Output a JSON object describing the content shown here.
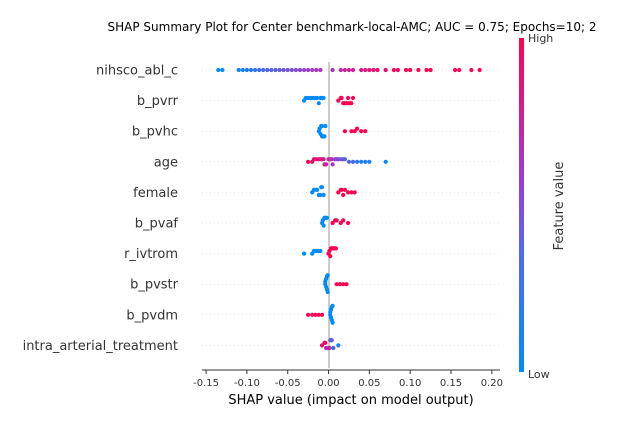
{
  "chart_data": {
    "type": "scatter",
    "title": "SHAP Summary Plot for Center benchmark-local-AMC; AUC = 0.75; Epochs=10; 2",
    "xlabel": "SHAP value (impact on model output)",
    "xlim": [
      -0.155,
      0.21
    ],
    "xticks": [
      "-0.15",
      "-0.10",
      "-0.05",
      "0.00",
      "0.05",
      "0.10",
      "0.15",
      "0.20"
    ],
    "xtick_values": [
      -0.15,
      -0.1,
      -0.05,
      0.0,
      0.05,
      0.1,
      0.15,
      0.2
    ],
    "colorbar": {
      "label": "Feature value",
      "high": "High",
      "low": "Low",
      "low_color": "#008bfb",
      "high_color": "#ff0052"
    },
    "features": [
      {
        "name": "nihsco_abl_c",
        "points": [
          {
            "x": -0.135,
            "v": 0.0
          },
          {
            "x": -0.13,
            "v": 0.0
          },
          {
            "x": -0.11,
            "v": 0.05
          },
          {
            "x": -0.105,
            "v": 0.05
          },
          {
            "x": -0.1,
            "v": 0.1
          },
          {
            "x": -0.095,
            "v": 0.1
          },
          {
            "x": -0.09,
            "v": 0.15
          },
          {
            "x": -0.085,
            "v": 0.2
          },
          {
            "x": -0.08,
            "v": 0.2
          },
          {
            "x": -0.075,
            "v": 0.25
          },
          {
            "x": -0.07,
            "v": 0.25
          },
          {
            "x": -0.065,
            "v": 0.3
          },
          {
            "x": -0.06,
            "v": 0.3
          },
          {
            "x": -0.055,
            "v": 0.35
          },
          {
            "x": -0.05,
            "v": 0.35
          },
          {
            "x": -0.045,
            "v": 0.4
          },
          {
            "x": -0.04,
            "v": 0.4
          },
          {
            "x": -0.035,
            "v": 0.45
          },
          {
            "x": -0.03,
            "v": 0.45
          },
          {
            "x": -0.025,
            "v": 0.5
          },
          {
            "x": -0.02,
            "v": 0.5
          },
          {
            "x": -0.015,
            "v": 0.55
          },
          {
            "x": -0.01,
            "v": 0.55
          },
          {
            "x": 0.005,
            "v": 0.6
          },
          {
            "x": 0.015,
            "v": 0.65
          },
          {
            "x": 0.02,
            "v": 0.7
          },
          {
            "x": 0.025,
            "v": 0.7
          },
          {
            "x": 0.03,
            "v": 0.75
          },
          {
            "x": 0.04,
            "v": 0.8
          },
          {
            "x": 0.045,
            "v": 0.8
          },
          {
            "x": 0.05,
            "v": 0.85
          },
          {
            "x": 0.055,
            "v": 0.85
          },
          {
            "x": 0.06,
            "v": 0.9
          },
          {
            "x": 0.07,
            "v": 0.9
          },
          {
            "x": 0.08,
            "v": 0.95
          },
          {
            "x": 0.085,
            "v": 0.95
          },
          {
            "x": 0.095,
            "v": 1.0
          },
          {
            "x": 0.1,
            "v": 1.0
          },
          {
            "x": 0.11,
            "v": 1.0
          },
          {
            "x": 0.12,
            "v": 1.0
          },
          {
            "x": 0.125,
            "v": 1.0
          },
          {
            "x": 0.155,
            "v": 1.0
          },
          {
            "x": 0.16,
            "v": 1.0
          },
          {
            "x": 0.175,
            "v": 1.0
          },
          {
            "x": 0.185,
            "v": 1.0
          }
        ]
      },
      {
        "name": "b_pvrr",
        "points": [
          {
            "x": -0.03,
            "v": 0.0
          },
          {
            "x": -0.025,
            "v": 0.0
          },
          {
            "x": -0.02,
            "v": 0.0
          },
          {
            "x": -0.018,
            "v": 0.0
          },
          {
            "x": -0.015,
            "v": 0.0
          },
          {
            "x": -0.012,
            "v": 0.0
          },
          {
            "x": -0.01,
            "v": 0.0
          },
          {
            "x": -0.008,
            "v": 0.0
          },
          {
            "x": -0.022,
            "v": 0.0
          },
          {
            "x": -0.014,
            "v": 0.0
          },
          {
            "x": -0.006,
            "v": 0.0
          },
          {
            "x": -0.028,
            "v": 0.0
          },
          {
            "x": 0.012,
            "v": 1.0
          },
          {
            "x": 0.015,
            "v": 1.0
          },
          {
            "x": 0.018,
            "v": 1.0
          },
          {
            "x": 0.02,
            "v": 1.0
          },
          {
            "x": 0.022,
            "v": 1.0
          },
          {
            "x": 0.025,
            "v": 1.0
          },
          {
            "x": 0.028,
            "v": 1.0
          },
          {
            "x": 0.03,
            "v": 1.0
          },
          {
            "x": 0.016,
            "v": 1.0
          },
          {
            "x": 0.024,
            "v": 1.0
          },
          {
            "x": 0.019,
            "v": 1.0
          },
          {
            "x": 0.026,
            "v": 1.0
          }
        ]
      },
      {
        "name": "b_pvhc",
        "points": [
          {
            "x": -0.012,
            "v": 0.0
          },
          {
            "x": -0.01,
            "v": 0.0
          },
          {
            "x": -0.008,
            "v": 0.0
          },
          {
            "x": -0.006,
            "v": 0.0
          },
          {
            "x": -0.005,
            "v": 0.0
          },
          {
            "x": -0.009,
            "v": 0.0
          },
          {
            "x": -0.007,
            "v": 0.0
          },
          {
            "x": -0.011,
            "v": 0.0
          },
          {
            "x": -0.004,
            "v": 0.0
          },
          {
            "x": -0.008,
            "v": 0.0
          },
          {
            "x": 0.02,
            "v": 1.0
          },
          {
            "x": 0.028,
            "v": 1.0
          },
          {
            "x": 0.032,
            "v": 1.0
          },
          {
            "x": 0.035,
            "v": 1.0
          },
          {
            "x": 0.04,
            "v": 1.0
          },
          {
            "x": 0.045,
            "v": 1.0
          }
        ]
      },
      {
        "name": "age",
        "points": [
          {
            "x": -0.025,
            "v": 1.0
          },
          {
            "x": -0.02,
            "v": 0.95
          },
          {
            "x": -0.015,
            "v": 0.9
          },
          {
            "x": -0.012,
            "v": 0.85
          },
          {
            "x": -0.01,
            "v": 0.8
          },
          {
            "x": -0.008,
            "v": 0.75
          },
          {
            "x": -0.005,
            "v": 0.7
          },
          {
            "x": -0.003,
            "v": 0.7
          },
          {
            "x": 0.0,
            "v": 0.65
          },
          {
            "x": 0.002,
            "v": 0.6
          },
          {
            "x": 0.005,
            "v": 0.55
          },
          {
            "x": 0.008,
            "v": 0.5
          },
          {
            "x": 0.01,
            "v": 0.45
          },
          {
            "x": 0.012,
            "v": 0.4
          },
          {
            "x": 0.015,
            "v": 0.35
          },
          {
            "x": 0.018,
            "v": 0.3
          },
          {
            "x": 0.02,
            "v": 0.3
          },
          {
            "x": 0.025,
            "v": 0.25
          },
          {
            "x": 0.03,
            "v": 0.2
          },
          {
            "x": 0.035,
            "v": 0.15
          },
          {
            "x": 0.04,
            "v": 0.1
          },
          {
            "x": 0.045,
            "v": 0.1
          },
          {
            "x": 0.05,
            "v": 0.05
          },
          {
            "x": 0.07,
            "v": 0.0
          },
          {
            "x": -0.018,
            "v": 0.9
          },
          {
            "x": -0.006,
            "v": 0.8
          },
          {
            "x": 0.004,
            "v": 0.6
          }
        ]
      },
      {
        "name": "female",
        "points": [
          {
            "x": -0.02,
            "v": 0.0
          },
          {
            "x": -0.018,
            "v": 0.0
          },
          {
            "x": -0.015,
            "v": 0.0
          },
          {
            "x": -0.012,
            "v": 0.0
          },
          {
            "x": -0.01,
            "v": 0.0
          },
          {
            "x": -0.008,
            "v": 0.0
          },
          {
            "x": -0.006,
            "v": 0.0
          },
          {
            "x": -0.014,
            "v": 0.0
          },
          {
            "x": -0.011,
            "v": 0.0
          },
          {
            "x": -0.009,
            "v": 0.0
          },
          {
            "x": 0.012,
            "v": 1.0
          },
          {
            "x": 0.015,
            "v": 1.0
          },
          {
            "x": 0.018,
            "v": 1.0
          },
          {
            "x": 0.02,
            "v": 1.0
          },
          {
            "x": 0.024,
            "v": 1.0
          },
          {
            "x": 0.028,
            "v": 1.0
          },
          {
            "x": 0.032,
            "v": 1.0
          },
          {
            "x": 0.016,
            "v": 1.0
          }
        ]
      },
      {
        "name": "b_pvaf",
        "points": [
          {
            "x": -0.008,
            "v": 0.0
          },
          {
            "x": -0.006,
            "v": 0.0
          },
          {
            "x": -0.004,
            "v": 0.0
          },
          {
            "x": -0.003,
            "v": 0.0
          },
          {
            "x": -0.005,
            "v": 0.0
          },
          {
            "x": -0.002,
            "v": 0.0
          },
          {
            "x": -0.007,
            "v": 0.0
          },
          {
            "x": 0.005,
            "v": 1.0
          },
          {
            "x": 0.008,
            "v": 1.0
          },
          {
            "x": 0.01,
            "v": 1.0
          },
          {
            "x": 0.015,
            "v": 1.0
          },
          {
            "x": 0.018,
            "v": 1.0
          },
          {
            "x": 0.024,
            "v": 1.0
          }
        ]
      },
      {
        "name": "r_ivtrom",
        "points": [
          {
            "x": -0.03,
            "v": 0.0
          },
          {
            "x": -0.02,
            "v": 0.0
          },
          {
            "x": -0.018,
            "v": 0.0
          },
          {
            "x": -0.015,
            "v": 0.0
          },
          {
            "x": -0.012,
            "v": 0.0
          },
          {
            "x": -0.01,
            "v": 0.0
          },
          {
            "x": 0.0,
            "v": 1.0
          },
          {
            "x": 0.002,
            "v": 1.0
          },
          {
            "x": 0.004,
            "v": 1.0
          },
          {
            "x": 0.006,
            "v": 1.0
          },
          {
            "x": 0.008,
            "v": 1.0
          },
          {
            "x": 0.003,
            "v": 1.0
          },
          {
            "x": 0.005,
            "v": 1.0
          },
          {
            "x": 0.007,
            "v": 1.0
          },
          {
            "x": 0.001,
            "v": 1.0
          },
          {
            "x": 0.009,
            "v": 1.0
          }
        ]
      },
      {
        "name": "b_pvstr",
        "points": [
          {
            "x": -0.004,
            "v": 0.0
          },
          {
            "x": -0.003,
            "v": 0.0
          },
          {
            "x": -0.002,
            "v": 0.0
          },
          {
            "x": -0.001,
            "v": 0.0
          },
          {
            "x": -0.003,
            "v": 0.0
          },
          {
            "x": -0.002,
            "v": 0.0
          },
          {
            "x": -0.004,
            "v": 0.0
          },
          {
            "x": -0.001,
            "v": 0.0
          },
          {
            "x": 0.01,
            "v": 1.0
          },
          {
            "x": 0.014,
            "v": 1.0
          },
          {
            "x": 0.018,
            "v": 1.0
          },
          {
            "x": 0.022,
            "v": 1.0
          }
        ]
      },
      {
        "name": "b_pvdm",
        "points": [
          {
            "x": -0.025,
            "v": 1.0
          },
          {
            "x": -0.02,
            "v": 1.0
          },
          {
            "x": -0.016,
            "v": 1.0
          },
          {
            "x": -0.012,
            "v": 1.0
          },
          {
            "x": -0.008,
            "v": 1.0
          },
          {
            "x": 0.002,
            "v": 0.0
          },
          {
            "x": 0.003,
            "v": 0.0
          },
          {
            "x": 0.004,
            "v": 0.0
          },
          {
            "x": 0.005,
            "v": 0.0
          },
          {
            "x": 0.003,
            "v": 0.0
          },
          {
            "x": 0.004,
            "v": 0.0
          },
          {
            "x": 0.002,
            "v": 0.0
          },
          {
            "x": 0.005,
            "v": 0.0
          }
        ]
      },
      {
        "name": "intra_arterial_treatment",
        "points": [
          {
            "x": -0.008,
            "v": 0.9
          },
          {
            "x": -0.005,
            "v": 0.8
          },
          {
            "x": -0.003,
            "v": 0.7
          },
          {
            "x": -0.001,
            "v": 0.6
          },
          {
            "x": 0.0,
            "v": 0.5
          },
          {
            "x": 0.002,
            "v": 0.4
          },
          {
            "x": 0.004,
            "v": 0.3
          },
          {
            "x": 0.006,
            "v": 0.2
          },
          {
            "x": 0.012,
            "v": 0.05
          },
          {
            "x": -0.004,
            "v": 1.0
          },
          {
            "x": 0.001,
            "v": 0.7
          },
          {
            "x": 0.003,
            "v": 0.1
          }
        ]
      }
    ]
  }
}
